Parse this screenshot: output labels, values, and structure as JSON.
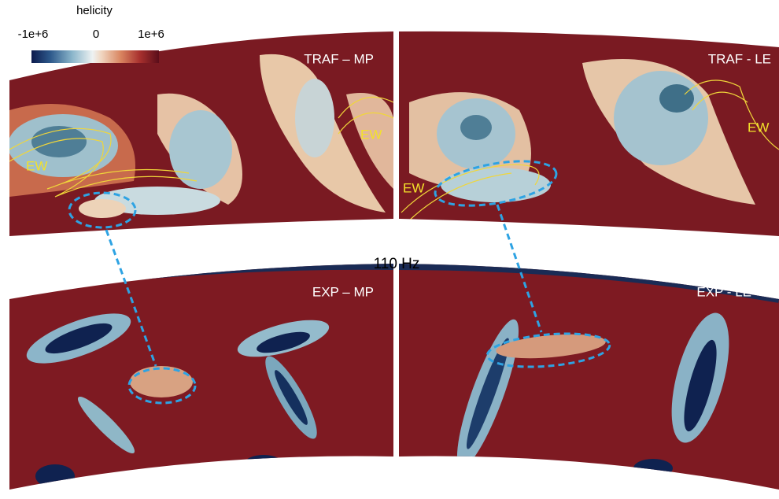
{
  "colorbar": {
    "title": "helicity",
    "ticks": [
      "-1e+6",
      "0",
      "1e+6"
    ]
  },
  "center_label": "110 Hz",
  "panels": [
    {
      "label": "TRAF – MP",
      "annotations": [
        "EW",
        "EW"
      ]
    },
    {
      "label": "TRAF - LE",
      "annotations": [
        "EW",
        "EW"
      ]
    },
    {
      "label": "EXP – MP"
    },
    {
      "label": "EXP - LE"
    }
  ]
}
